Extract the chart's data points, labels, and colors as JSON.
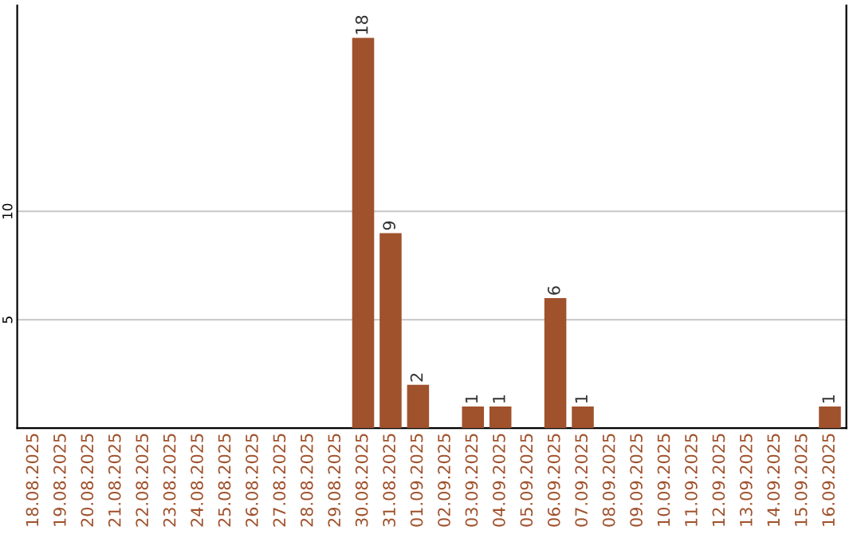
{
  "chart_data": {
    "type": "bar",
    "categories": [
      "18.08.2025",
      "19.08.2025",
      "20.08.2025",
      "21.08.2025",
      "22.08.2025",
      "23.08.2025",
      "24.08.2025",
      "25.08.2025",
      "26.08.2025",
      "27.08.2025",
      "28.08.2025",
      "29.08.2025",
      "30.08.2025",
      "31.08.2025",
      "01.09.2025",
      "02.09.2025",
      "03.09.2025",
      "04.09.2025",
      "05.09.2025",
      "06.09.2025",
      "07.09.2025",
      "08.09.2025",
      "09.09.2025",
      "10.09.2025",
      "11.09.2025",
      "12.09.2025",
      "13.09.2025",
      "14.09.2025",
      "15.09.2025",
      "16.09.2025"
    ],
    "values": [
      0,
      0,
      0,
      0,
      0,
      0,
      0,
      0,
      0,
      0,
      0,
      0,
      18,
      9,
      2,
      0,
      1,
      1,
      0,
      6,
      1,
      0,
      0,
      0,
      0,
      0,
      0,
      0,
      0,
      1
    ],
    "value_labels": [
      null,
      null,
      null,
      null,
      null,
      null,
      null,
      null,
      null,
      null,
      null,
      null,
      "18",
      "9",
      "2",
      null,
      "1",
      "1",
      null,
      "6",
      "1",
      null,
      null,
      null,
      null,
      null,
      null,
      null,
      null,
      "1"
    ],
    "color": "#a0522d",
    "ylim": [
      0,
      19.5
    ],
    "yticks": [
      5,
      10
    ],
    "grid": "y"
  }
}
